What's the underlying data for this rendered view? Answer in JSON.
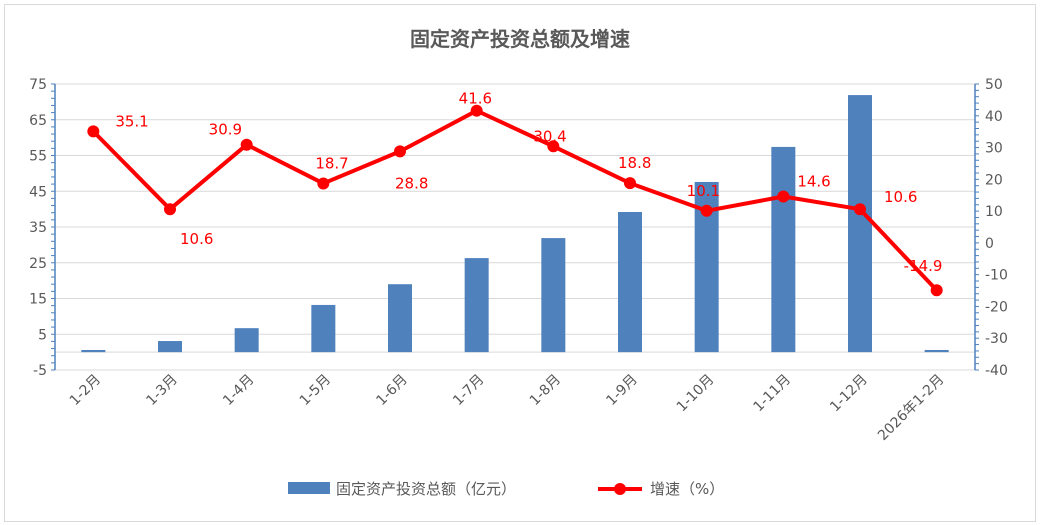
{
  "chart_data": {
    "type": "bar+line",
    "title": "固定资产投资总额及增速",
    "categories": [
      "1-2月",
      "1-3月",
      "1-4月",
      "1-5月",
      "1-6月",
      "1-7月",
      "1-8月",
      "1-9月",
      "1-10月",
      "1-11月",
      "1-12月",
      "2026年1-2月"
    ],
    "series": [
      {
        "name": "固定资产投资总额（亿元）",
        "type": "bar",
        "axis": "left",
        "color": "#4f81bd",
        "values": [
          0.6,
          3.1,
          6.7,
          13.2,
          19.0,
          26.3,
          31.9,
          39.2,
          47.6,
          57.4,
          71.9,
          0.6
        ]
      },
      {
        "name": "增速（%）",
        "type": "line",
        "axis": "right",
        "color": "#ff0000",
        "values": [
          35.1,
          10.6,
          30.9,
          18.7,
          28.8,
          41.6,
          30.4,
          18.8,
          10.1,
          14.6,
          10.6,
          -14.9
        ],
        "labels": [
          "35.1",
          "10.6",
          "30.9",
          "18.7",
          "28.8",
          "41.6",
          "30.4",
          "18.8",
          "10.1",
          "14.6",
          "10.6",
          "-14.9"
        ]
      }
    ],
    "left_axis": {
      "ylim": [
        -5,
        75
      ],
      "ticks": [
        75,
        65,
        55,
        45,
        35,
        25,
        15,
        5,
        -5
      ]
    },
    "right_axis": {
      "ylim": [
        -40,
        50
      ],
      "ticks": [
        50,
        40,
        30,
        20,
        10,
        0,
        -10,
        -20,
        -30,
        -40
      ]
    },
    "grid": true,
    "legend": "bottom"
  }
}
